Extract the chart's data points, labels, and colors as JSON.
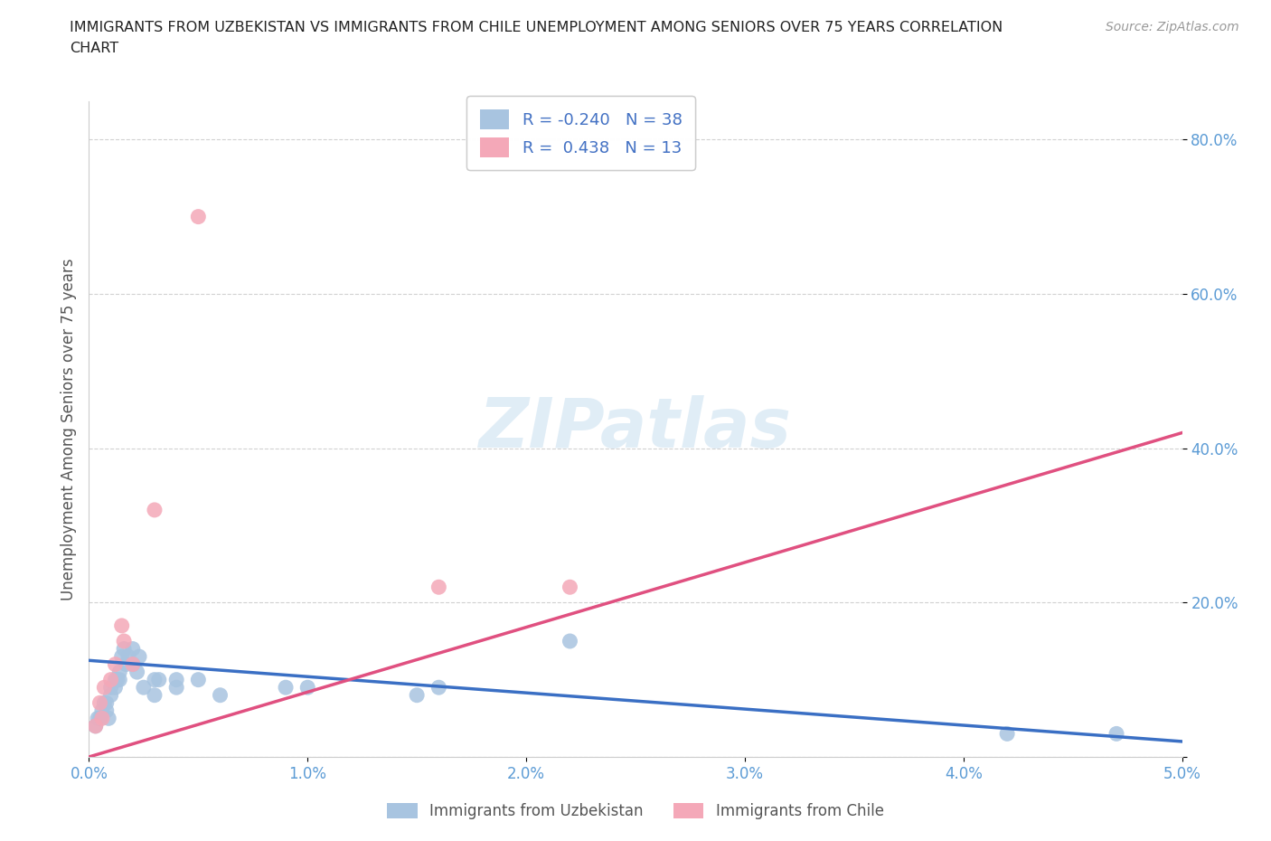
{
  "title_line1": "IMMIGRANTS FROM UZBEKISTAN VS IMMIGRANTS FROM CHILE UNEMPLOYMENT AMONG SENIORS OVER 75 YEARS CORRELATION",
  "title_line2": "CHART",
  "source": "Source: ZipAtlas.com",
  "ylabel": "Unemployment Among Seniors over 75 years",
  "x_min": 0.0,
  "x_max": 0.05,
  "y_min": 0.0,
  "y_max": 0.85,
  "x_ticks": [
    0.0,
    0.01,
    0.02,
    0.03,
    0.04,
    0.05
  ],
  "x_tick_labels": [
    "0.0%",
    "1.0%",
    "2.0%",
    "3.0%",
    "4.0%",
    "5.0%"
  ],
  "y_ticks": [
    0.0,
    0.2,
    0.4,
    0.6,
    0.8
  ],
  "y_tick_labels": [
    "",
    "20.0%",
    "40.0%",
    "60.0%",
    "80.0%"
  ],
  "uzbekistan_color": "#a8c4e0",
  "chile_color": "#f4a8b8",
  "uzbekistan_line_color": "#3a6fc4",
  "chile_line_color": "#e05080",
  "uzbekistan_R": -0.24,
  "uzbekistan_N": 38,
  "chile_R": 0.438,
  "chile_N": 13,
  "uzbekistan_scatter_x": [
    0.0003,
    0.0004,
    0.0005,
    0.0006,
    0.0007,
    0.0008,
    0.0008,
    0.0009,
    0.001,
    0.001,
    0.0012,
    0.0012,
    0.0013,
    0.0014,
    0.0014,
    0.0015,
    0.0016,
    0.0017,
    0.0018,
    0.002,
    0.002,
    0.0022,
    0.0023,
    0.0025,
    0.003,
    0.003,
    0.0032,
    0.004,
    0.004,
    0.005,
    0.006,
    0.009,
    0.01,
    0.015,
    0.016,
    0.022,
    0.042,
    0.047
  ],
  "uzbekistan_scatter_y": [
    0.04,
    0.05,
    0.05,
    0.06,
    0.07,
    0.06,
    0.07,
    0.05,
    0.08,
    0.09,
    0.09,
    0.1,
    0.1,
    0.1,
    0.11,
    0.13,
    0.14,
    0.12,
    0.13,
    0.12,
    0.14,
    0.11,
    0.13,
    0.09,
    0.08,
    0.1,
    0.1,
    0.1,
    0.09,
    0.1,
    0.08,
    0.09,
    0.09,
    0.08,
    0.09,
    0.15,
    0.03,
    0.03
  ],
  "chile_scatter_x": [
    0.0003,
    0.0005,
    0.0006,
    0.0007,
    0.001,
    0.0012,
    0.0015,
    0.0016,
    0.002,
    0.003,
    0.016,
    0.022,
    0.005
  ],
  "chile_scatter_y": [
    0.04,
    0.07,
    0.05,
    0.09,
    0.1,
    0.12,
    0.17,
    0.15,
    0.12,
    0.32,
    0.22,
    0.22,
    0.7
  ],
  "grid_color": "#cccccc",
  "background_color": "#ffffff",
  "legend_text_color": "#4472c4",
  "watermark": "ZIPatlas"
}
